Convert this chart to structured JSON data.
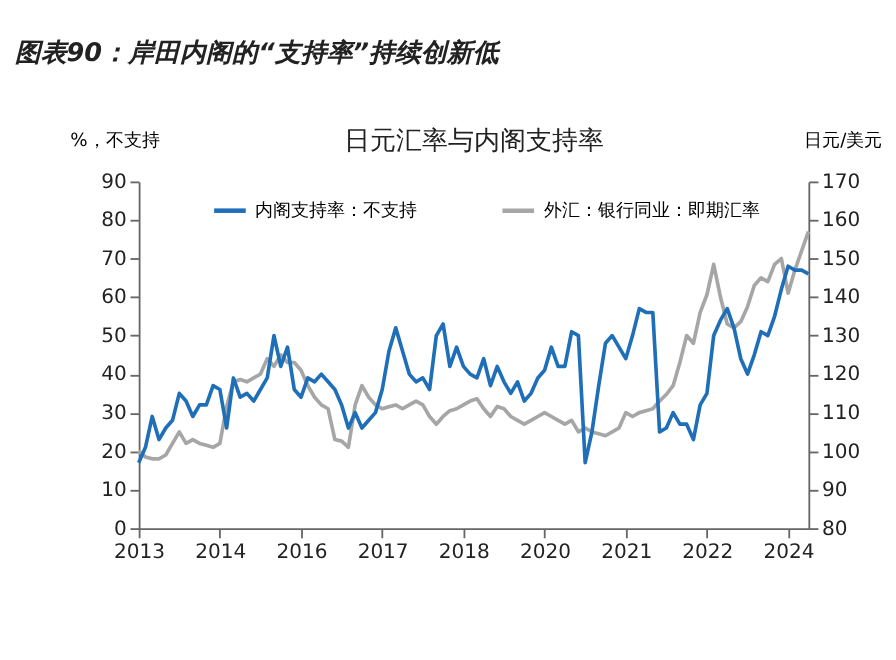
{
  "chart_data": {
    "type": "line",
    "title": "图表90：岸田内阁的“支持率”持续创新低",
    "subtitle": "日元汇率与内阁支持率",
    "ylabel": "%，不支持",
    "y2label": "日元/美元",
    "categories": [
      "2013",
      null,
      null,
      null,
      null,
      null,
      null,
      null,
      null,
      null,
      null,
      null,
      "2014",
      null,
      null,
      null,
      null,
      null,
      null,
      null,
      null,
      null,
      null,
      null,
      "2016",
      null,
      null,
      null,
      null,
      null,
      null,
      null,
      null,
      null,
      null,
      null,
      "2017",
      null,
      null,
      null,
      null,
      null,
      null,
      null,
      null,
      null,
      null,
      null,
      "2018",
      null,
      null,
      null,
      null,
      null,
      null,
      null,
      null,
      null,
      null,
      null,
      "2020",
      null,
      null,
      null,
      null,
      null,
      null,
      null,
      null,
      null,
      null,
      null,
      "2021",
      null,
      null,
      null,
      null,
      null,
      null,
      null,
      null,
      null,
      null,
      null,
      "2022",
      null,
      null,
      null,
      null,
      null,
      null,
      null,
      null,
      null,
      null,
      null,
      "2024",
      null,
      null,
      null
    ],
    "ylim": [
      0,
      90
    ],
    "yticks": [
      0,
      10,
      20,
      30,
      40,
      50,
      60,
      70,
      80,
      90
    ],
    "y2lim": [
      80,
      170
    ],
    "y2ticks": [
      80,
      90,
      100,
      110,
      120,
      130,
      140,
      150,
      160,
      170
    ],
    "legend": "top",
    "line_style": "solid",
    "series": [
      {
        "name": "内阁支持率：不支持",
        "color": "#1f6fb8",
        "axis": "y",
        "values": [
          17,
          21,
          29,
          23,
          26,
          28,
          35,
          33,
          29,
          32,
          32,
          37,
          36,
          26,
          39,
          34,
          35,
          33,
          36,
          39,
          50,
          42,
          47,
          36,
          34,
          39,
          38,
          40,
          38,
          36,
          32,
          26,
          30,
          26,
          28,
          30,
          36,
          46,
          52,
          46,
          40,
          38,
          39,
          36,
          50,
          53,
          42,
          47,
          42,
          40,
          39,
          44,
          37,
          42,
          38,
          35,
          38,
          33,
          35,
          39,
          41,
          47,
          42,
          42,
          51,
          50,
          17,
          25,
          37,
          48,
          50,
          47,
          44,
          50,
          57,
          56,
          56,
          25,
          26,
          30,
          27,
          27,
          23,
          32,
          35,
          50,
          54,
          57,
          52,
          44,
          40,
          45,
          51,
          50,
          55,
          62,
          68,
          67,
          67,
          66
        ]
      },
      {
        "name": "外汇：银行同业：即期汇率",
        "color": "#a6a6a6",
        "axis": "y2",
        "values": [
          100,
          98.5,
          98,
          98,
          99,
          102,
          105,
          102,
          103,
          102,
          101.5,
          101,
          102,
          111.6,
          118,
          118.6,
          118,
          119,
          120,
          124,
          122,
          125,
          123,
          123,
          121,
          117,
          114,
          112,
          111,
          103,
          102.6,
          101,
          112,
          117,
          114,
          112,
          111,
          111.5,
          112,
          111,
          112,
          113,
          112,
          109,
          107,
          109,
          110.5,
          111,
          112,
          113,
          113.6,
          111,
          109,
          111.6,
          111,
          109,
          108,
          107,
          108,
          109,
          110,
          109,
          108,
          107,
          108,
          105,
          106,
          105,
          104.5,
          104,
          105,
          106,
          110,
          109,
          110,
          110.5,
          111,
          113,
          114.7,
          117,
          123,
          130,
          128,
          136,
          140.6,
          148.5,
          140,
          133,
          132,
          133.6,
          137.5,
          143,
          145,
          144,
          148.5,
          150,
          141,
          147,
          152,
          157
        ]
      }
    ]
  }
}
